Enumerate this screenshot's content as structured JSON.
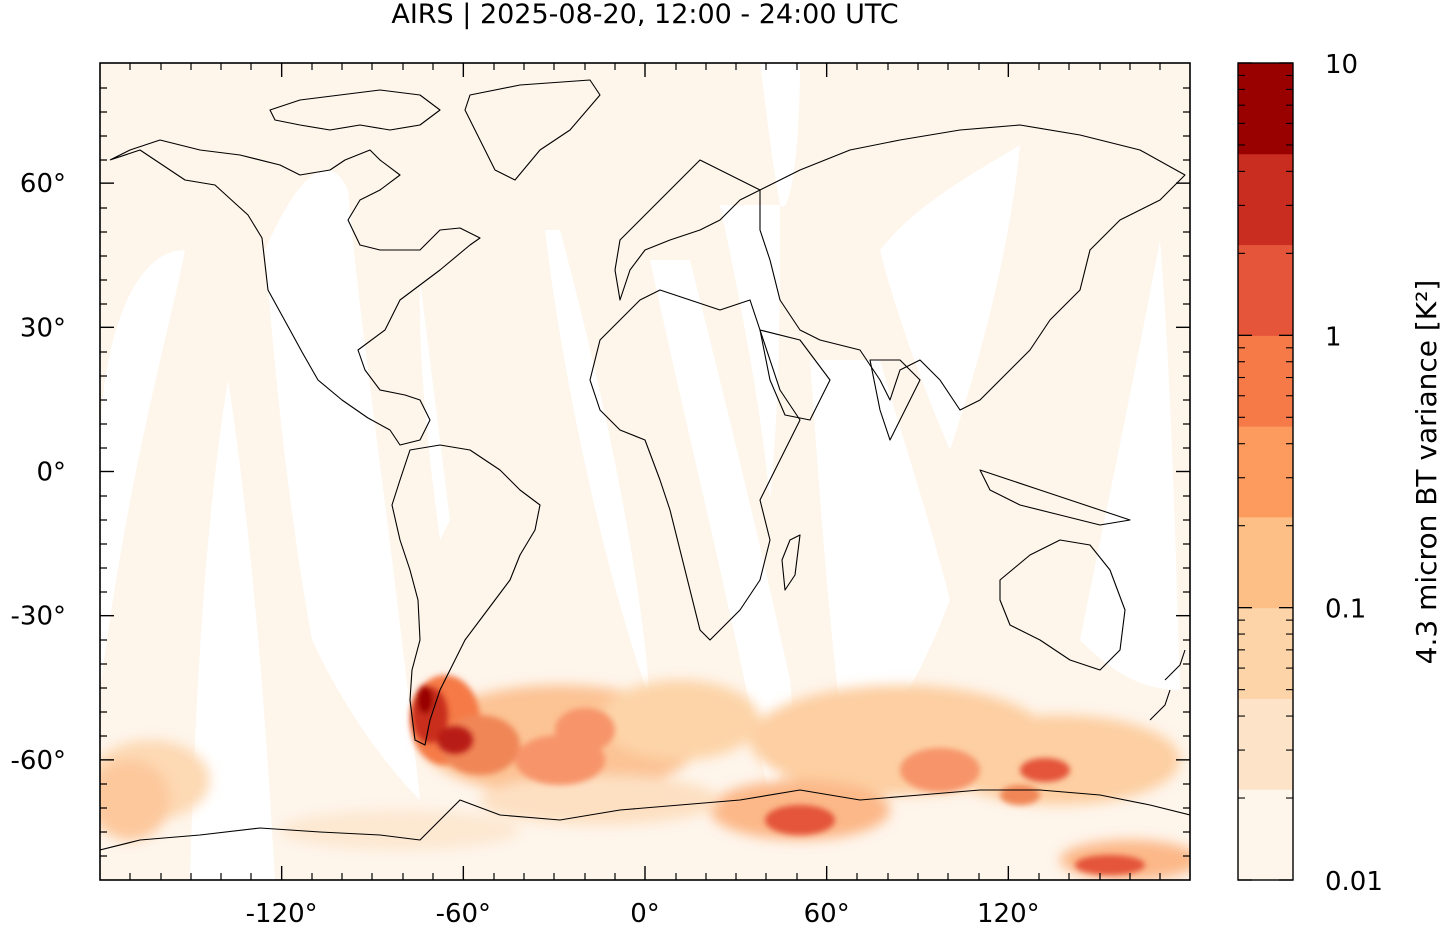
{
  "title": "AIRS | 2025-08-20, 12:00 - 24:00 UTC",
  "map": {
    "lon_range": [
      -180,
      180
    ],
    "lat_range": [
      -85,
      85
    ],
    "x_ticks": [
      {
        "value": -120,
        "label": "-120°"
      },
      {
        "value": -60,
        "label": "-60°"
      },
      {
        "value": 0,
        "label": "0°"
      },
      {
        "value": 60,
        "label": "60°"
      },
      {
        "value": 120,
        "label": "120°"
      }
    ],
    "y_ticks": [
      {
        "value": 60,
        "label": "60°"
      },
      {
        "value": 30,
        "label": "30°"
      },
      {
        "value": 0,
        "label": "0°"
      },
      {
        "value": -30,
        "label": "-30°"
      },
      {
        "value": -60,
        "label": "-60°"
      }
    ],
    "background_color": "#fef5eb",
    "gap_color": "#ffffff"
  },
  "colorbar": {
    "label": "4.3 micron BT variance [K²]",
    "scale": "log",
    "range": [
      0.01,
      10
    ],
    "tick_labels": [
      {
        "value": 10,
        "label": "10"
      },
      {
        "value": 1,
        "label": "1"
      },
      {
        "value": 0.1,
        "label": "0.1"
      },
      {
        "value": 0.01,
        "label": "0.01"
      }
    ],
    "colors": [
      "#fef5eb",
      "#fde4c8",
      "#fdd4a8",
      "#fdbf86",
      "#fc9b5d",
      "#f57a47",
      "#e4553a",
      "#c92d1f",
      "#990000"
    ]
  }
}
